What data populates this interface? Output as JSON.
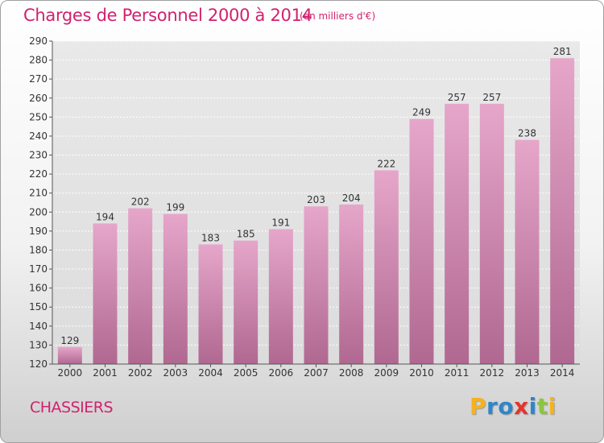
{
  "chart_data": {
    "type": "bar",
    "title": "Charges de Personnel 2000 à 2014",
    "subtitle": "(en milliers d'€)",
    "categories": [
      "2000",
      "2001",
      "2002",
      "2003",
      "2004",
      "2005",
      "2006",
      "2007",
      "2008",
      "2009",
      "2010",
      "2011",
      "2012",
      "2013",
      "2014"
    ],
    "values": [
      129,
      194,
      202,
      199,
      183,
      185,
      191,
      203,
      204,
      222,
      249,
      257,
      257,
      238,
      281
    ],
    "ylim": [
      120,
      290
    ],
    "yticks": [
      120,
      130,
      140,
      150,
      160,
      170,
      180,
      190,
      200,
      210,
      220,
      230,
      240,
      250,
      260,
      270,
      280,
      290
    ],
    "grid": true,
    "bar_color_top": "#e6a6ca",
    "bar_color_bottom": "#b06891"
  },
  "footer": {
    "town": "CHASSIERS"
  },
  "logo": {
    "letters": [
      "P",
      "r",
      "o",
      "x",
      "i",
      "t",
      "i"
    ],
    "colors": [
      "#f7b21a",
      "#2f86c8",
      "#2f86c8",
      "#e4342e",
      "#2f86c8",
      "#8cc63f",
      "#f7b21a"
    ]
  }
}
